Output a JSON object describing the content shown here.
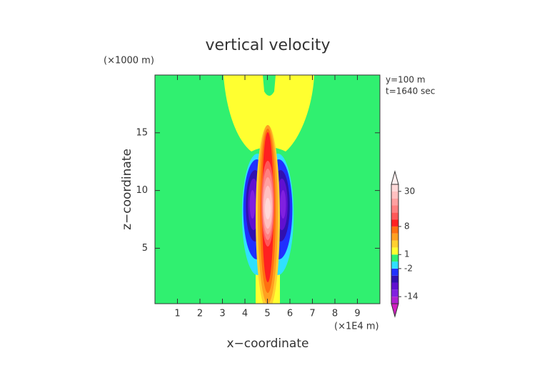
{
  "chart_data": {
    "type": "contour",
    "title": "vertical velocity",
    "x_label": "x−coordinate",
    "y_label": "z−coordinate",
    "x_unit": "(×1E4 m)",
    "y_unit": "(×1000 m)",
    "annotations": [
      "y=100 m",
      "t=1640 sec"
    ],
    "xlim": [
      0,
      10
    ],
    "ylim": [
      0.2,
      20
    ],
    "xticks": [
      1,
      2,
      3,
      4,
      5,
      6,
      7,
      8,
      9
    ],
    "yticks": [
      5,
      10,
      15
    ],
    "colorbar": {
      "levels": [
        -20,
        -14,
        -10,
        -6,
        -4,
        -2,
        -1,
        1,
        2,
        4,
        6,
        8,
        12,
        16,
        20,
        25,
        30,
        35
      ],
      "colors": [
        "#d020c0",
        "#b020d0",
        "#8020e0",
        "#6010d0",
        "#3010b0",
        "#2030ff",
        "#30e0ff",
        "#30f070",
        "#ffff30",
        "#ffd030",
        "#ffa020",
        "#ff7010",
        "#ff2020",
        "#ff5858",
        "#ff8080",
        "#ffa0a0",
        "#ffc0c0",
        "#ffd8d8",
        "#fff0f0"
      ],
      "ticks": [
        30,
        8,
        1,
        -2,
        -14
      ]
    }
  }
}
